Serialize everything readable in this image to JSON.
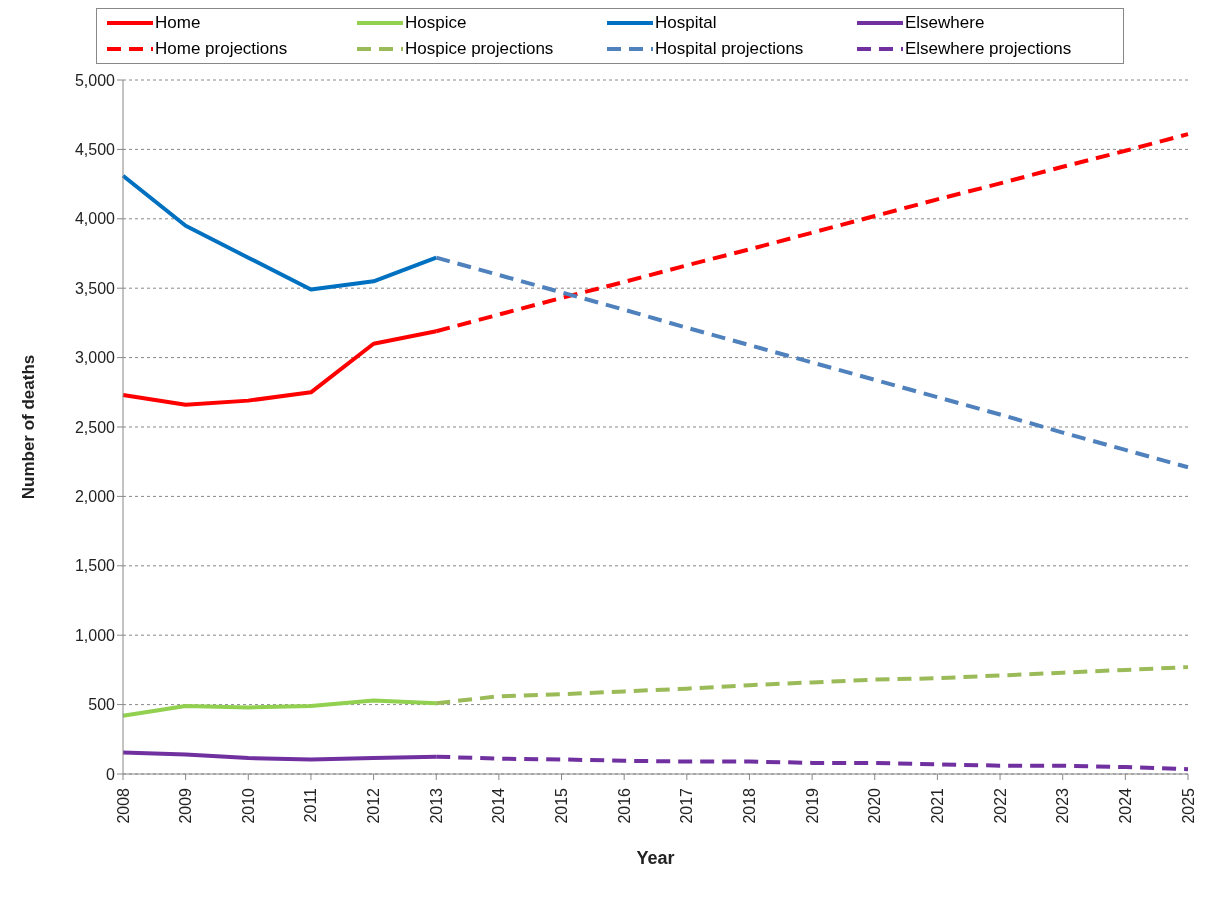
{
  "chart_data": {
    "type": "line",
    "xlabel": "Year",
    "ylabel": "Number of deaths",
    "categories": [
      "2008",
      "2009",
      "2010",
      "2011",
      "2012",
      "2013",
      "2014",
      "2015",
      "2016",
      "2017",
      "2018",
      "2019",
      "2020",
      "2021",
      "2022",
      "2023",
      "2024",
      "2025"
    ],
    "series": [
      {
        "name": "Home",
        "color": "#ff0000",
        "line_style": "solid",
        "values": [
          2730,
          2660,
          2690,
          2750,
          3100,
          3190,
          null,
          null,
          null,
          null,
          null,
          null,
          null,
          null,
          null,
          null,
          null,
          null
        ]
      },
      {
        "name": "Hospice",
        "color": "#92d050",
        "line_style": "solid",
        "values": [
          420,
          490,
          480,
          490,
          530,
          510,
          null,
          null,
          null,
          null,
          null,
          null,
          null,
          null,
          null,
          null,
          null,
          null
        ]
      },
      {
        "name": "Hospital",
        "color": "#0070c0",
        "line_style": "solid",
        "values": [
          4310,
          3950,
          3720,
          3490,
          3550,
          3720,
          null,
          null,
          null,
          null,
          null,
          null,
          null,
          null,
          null,
          null,
          null,
          null
        ]
      },
      {
        "name": "Elsewhere",
        "color": "#7030a0",
        "line_style": "solid",
        "values": [
          155,
          140,
          115,
          105,
          115,
          125,
          null,
          null,
          null,
          null,
          null,
          null,
          null,
          null,
          null,
          null,
          null,
          null
        ]
      },
      {
        "name": "Home projections",
        "color": "#ff0000",
        "line_style": "dashed",
        "values": [
          null,
          null,
          null,
          null,
          null,
          3190,
          3310,
          3430,
          3545,
          3665,
          3780,
          3900,
          4020,
          4140,
          4255,
          4375,
          4490,
          4610
        ]
      },
      {
        "name": "Hospice projections",
        "color": "#9bbb59",
        "line_style": "dashed",
        "values": [
          null,
          null,
          null,
          null,
          null,
          510,
          560,
          575,
          595,
          615,
          640,
          660,
          680,
          690,
          710,
          730,
          750,
          770
        ]
      },
      {
        "name": "Hospital projections",
        "color": "#4f81bd",
        "line_style": "dashed",
        "values": [
          null,
          null,
          null,
          null,
          null,
          3720,
          3595,
          3470,
          3345,
          3215,
          3090,
          2965,
          2840,
          2715,
          2590,
          2460,
          2335,
          2210
        ]
      },
      {
        "name": "Elsewhere projections",
        "color": "#7030a0",
        "line_style": "dashed",
        "values": [
          null,
          null,
          null,
          null,
          null,
          125,
          110,
          105,
          95,
          90,
          90,
          80,
          80,
          70,
          60,
          60,
          50,
          35
        ]
      }
    ],
    "ylim": [
      0,
      5000
    ],
    "yticks": [
      0,
      500,
      {
        "value": 1000,
        "label": "1,000"
      },
      {
        "value": 1500,
        "label": "1,500"
      },
      {
        "value": 2000,
        "label": "2,000"
      },
      {
        "value": 2500,
        "label": "2,500"
      },
      {
        "value": 3000,
        "label": "3,000"
      },
      {
        "value": 3500,
        "label": "3,500"
      },
      {
        "value": 4000,
        "label": "4,000"
      },
      {
        "value": 4500,
        "label": "4,500"
      },
      {
        "value": 5000,
        "label": "5,000"
      }
    ],
    "grid": "y",
    "legend": "top",
    "marker": "none"
  }
}
